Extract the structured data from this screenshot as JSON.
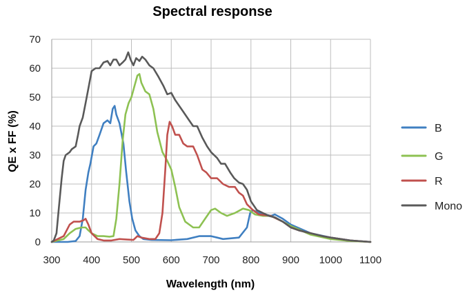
{
  "chart_data": {
    "type": "line",
    "title": "Spectral response",
    "xlabel": "Wavelength (nm)",
    "ylabel": "QE x FF (%)",
    "xlim": [
      300,
      1100
    ],
    "ylim": [
      0,
      70
    ],
    "xticks": [
      300,
      400,
      500,
      600,
      700,
      800,
      900,
      1000,
      1100
    ],
    "yticks": [
      0,
      10,
      20,
      30,
      40,
      50,
      60,
      70
    ],
    "grid": true,
    "legend_position": "right",
    "series": [
      {
        "name": "B",
        "color": "#3f7fc1",
        "points": [
          [
            300,
            0
          ],
          [
            340,
            0
          ],
          [
            360,
            0.3
          ],
          [
            370,
            2
          ],
          [
            378,
            8
          ],
          [
            385,
            18
          ],
          [
            392,
            24
          ],
          [
            397,
            27
          ],
          [
            405,
            33
          ],
          [
            412,
            34
          ],
          [
            420,
            37
          ],
          [
            430,
            41
          ],
          [
            440,
            42
          ],
          [
            447,
            41
          ],
          [
            453,
            46
          ],
          [
            458,
            47
          ],
          [
            462,
            44
          ],
          [
            470,
            41
          ],
          [
            480,
            34
          ],
          [
            487,
            24
          ],
          [
            495,
            14
          ],
          [
            502,
            8
          ],
          [
            510,
            4
          ],
          [
            520,
            2
          ],
          [
            530,
            1
          ],
          [
            550,
            0.7
          ],
          [
            600,
            0.6
          ],
          [
            640,
            1
          ],
          [
            670,
            2
          ],
          [
            700,
            2
          ],
          [
            715,
            1.5
          ],
          [
            730,
            1
          ],
          [
            770,
            1.5
          ],
          [
            790,
            5
          ],
          [
            798,
            10
          ],
          [
            805,
            11
          ],
          [
            820,
            10
          ],
          [
            850,
            9
          ],
          [
            860,
            9.5
          ],
          [
            880,
            8
          ],
          [
            900,
            6
          ],
          [
            950,
            3
          ],
          [
            1000,
            1.5
          ],
          [
            1050,
            0.5
          ],
          [
            1100,
            0
          ]
        ]
      },
      {
        "name": "G",
        "color": "#8dc152",
        "points": [
          [
            300,
            0
          ],
          [
            330,
            1
          ],
          [
            345,
            3
          ],
          [
            360,
            4.5
          ],
          [
            375,
            5
          ],
          [
            385,
            5
          ],
          [
            392,
            4
          ],
          [
            400,
            3
          ],
          [
            415,
            2
          ],
          [
            430,
            2
          ],
          [
            445,
            1.8
          ],
          [
            455,
            2
          ],
          [
            462,
            8
          ],
          [
            470,
            20
          ],
          [
            478,
            35
          ],
          [
            485,
            44
          ],
          [
            493,
            48
          ],
          [
            500,
            50
          ],
          [
            508,
            54
          ],
          [
            515,
            57.5
          ],
          [
            520,
            58
          ],
          [
            525,
            55
          ],
          [
            535,
            52
          ],
          [
            545,
            51
          ],
          [
            555,
            46
          ],
          [
            565,
            38
          ],
          [
            578,
            31
          ],
          [
            590,
            28
          ],
          [
            600,
            25
          ],
          [
            610,
            19
          ],
          [
            620,
            12
          ],
          [
            635,
            7
          ],
          [
            655,
            5
          ],
          [
            670,
            5
          ],
          [
            685,
            8
          ],
          [
            700,
            11
          ],
          [
            710,
            11.5
          ],
          [
            725,
            10
          ],
          [
            740,
            9
          ],
          [
            760,
            10
          ],
          [
            780,
            11.5
          ],
          [
            795,
            11
          ],
          [
            810,
            9.5
          ],
          [
            830,
            9
          ],
          [
            850,
            9
          ],
          [
            880,
            7
          ],
          [
            900,
            5.5
          ],
          [
            950,
            2.5
          ],
          [
            1000,
            1
          ],
          [
            1050,
            0.3
          ],
          [
            1100,
            0
          ]
        ]
      },
      {
        "name": "R",
        "color": "#c0504d",
        "points": [
          [
            300,
            0
          ],
          [
            330,
            2
          ],
          [
            345,
            6
          ],
          [
            355,
            7
          ],
          [
            370,
            7
          ],
          [
            380,
            7.5
          ],
          [
            385,
            8
          ],
          [
            392,
            6
          ],
          [
            400,
            3
          ],
          [
            415,
            1
          ],
          [
            430,
            0.5
          ],
          [
            450,
            0.5
          ],
          [
            470,
            1
          ],
          [
            490,
            0.8
          ],
          [
            505,
            0.7
          ],
          [
            515,
            2
          ],
          [
            525,
            1.5
          ],
          [
            545,
            1
          ],
          [
            560,
            1
          ],
          [
            570,
            3
          ],
          [
            578,
            10
          ],
          [
            585,
            25
          ],
          [
            590,
            37
          ],
          [
            596,
            41.5
          ],
          [
            602,
            40
          ],
          [
            610,
            37
          ],
          [
            620,
            37
          ],
          [
            630,
            34
          ],
          [
            640,
            33
          ],
          [
            655,
            33
          ],
          [
            665,
            30
          ],
          [
            678,
            25
          ],
          [
            688,
            24
          ],
          [
            700,
            22
          ],
          [
            715,
            22
          ],
          [
            730,
            20
          ],
          [
            745,
            19
          ],
          [
            760,
            19
          ],
          [
            770,
            17
          ],
          [
            780,
            16
          ],
          [
            790,
            13
          ],
          [
            805,
            11
          ],
          [
            820,
            9.5
          ],
          [
            850,
            9
          ],
          [
            880,
            7
          ],
          [
            900,
            5
          ],
          [
            920,
            4
          ],
          [
            950,
            3
          ],
          [
            980,
            2
          ],
          [
            1000,
            1.5
          ],
          [
            1050,
            0.5
          ],
          [
            1100,
            0
          ]
        ]
      },
      {
        "name": "Mono",
        "color": "#595959",
        "points": [
          [
            300,
            0
          ],
          [
            305,
            0.5
          ],
          [
            312,
            3
          ],
          [
            318,
            12
          ],
          [
            325,
            22
          ],
          [
            330,
            28
          ],
          [
            335,
            30
          ],
          [
            345,
            31
          ],
          [
            350,
            32
          ],
          [
            360,
            33
          ],
          [
            366,
            37
          ],
          [
            370,
            40
          ],
          [
            378,
            43
          ],
          [
            385,
            48
          ],
          [
            392,
            53
          ],
          [
            400,
            59
          ],
          [
            410,
            60
          ],
          [
            420,
            60
          ],
          [
            430,
            62
          ],
          [
            440,
            62.5
          ],
          [
            447,
            61
          ],
          [
            455,
            63
          ],
          [
            462,
            63
          ],
          [
            470,
            61
          ],
          [
            478,
            62
          ],
          [
            485,
            63
          ],
          [
            492,
            65.5
          ],
          [
            498,
            63
          ],
          [
            505,
            61
          ],
          [
            512,
            63.5
          ],
          [
            520,
            62.5
          ],
          [
            527,
            64
          ],
          [
            535,
            63
          ],
          [
            545,
            61
          ],
          [
            555,
            60
          ],
          [
            568,
            57
          ],
          [
            580,
            54
          ],
          [
            590,
            51
          ],
          [
            600,
            51.5
          ],
          [
            610,
            49
          ],
          [
            620,
            47
          ],
          [
            630,
            45
          ],
          [
            645,
            42
          ],
          [
            655,
            40
          ],
          [
            665,
            40
          ],
          [
            678,
            36
          ],
          [
            690,
            33
          ],
          [
            700,
            31
          ],
          [
            715,
            29
          ],
          [
            725,
            27
          ],
          [
            735,
            27
          ],
          [
            748,
            24
          ],
          [
            758,
            22
          ],
          [
            770,
            20.5
          ],
          [
            780,
            20
          ],
          [
            790,
            18
          ],
          [
            800,
            14
          ],
          [
            815,
            11
          ],
          [
            830,
            10
          ],
          [
            845,
            9
          ],
          [
            860,
            8.5
          ],
          [
            880,
            7
          ],
          [
            900,
            5
          ],
          [
            920,
            4
          ],
          [
            950,
            3
          ],
          [
            980,
            2
          ],
          [
            1000,
            1.5
          ],
          [
            1050,
            0.5
          ],
          [
            1100,
            0
          ]
        ]
      }
    ]
  }
}
